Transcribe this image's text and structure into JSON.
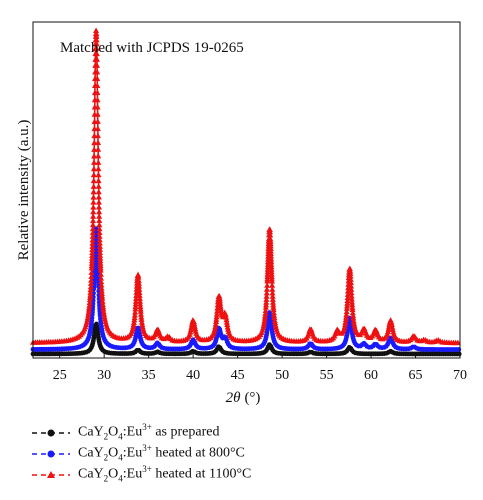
{
  "chart_data": {
    "type": "line",
    "annotation": "Matched with JCPDS 19-0265",
    "xlabel_var": "2θ",
    "xlabel_unit": "(°)",
    "ylabel": "Relative intensity (a.u.)",
    "xlim": [
      22,
      70
    ],
    "ylim": [
      0,
      1
    ],
    "xticks": [
      25,
      30,
      35,
      40,
      45,
      50,
      55,
      60,
      65,
      70
    ],
    "grid": false,
    "legend_position": "bottom",
    "series": [
      {
        "name_prefix": "CaY",
        "name_suffix": " as prepared",
        "color": "#111111",
        "marker": "circle",
        "baseline": 0.012,
        "peaks": [
          [
            29.1,
            0.09
          ],
          [
            33.8,
            0.012
          ],
          [
            36.0,
            0.006
          ],
          [
            40.0,
            0.008
          ],
          [
            42.9,
            0.022
          ],
          [
            48.6,
            0.028
          ],
          [
            53.2,
            0.006
          ],
          [
            57.6,
            0.02
          ],
          [
            62.2,
            0.008
          ]
        ]
      },
      {
        "name_prefix": "CaY",
        "name_suffix": " heated at 800°C",
        "color": "#1a1aff",
        "marker": "circle",
        "baseline": 0.025,
        "peaks": [
          [
            29.1,
            0.36
          ],
          [
            33.8,
            0.065
          ],
          [
            36.0,
            0.018
          ],
          [
            40.0,
            0.028
          ],
          [
            42.9,
            0.06
          ],
          [
            43.6,
            0.03
          ],
          [
            48.6,
            0.11
          ],
          [
            53.2,
            0.018
          ],
          [
            57.6,
            0.095
          ],
          [
            59.2,
            0.015
          ],
          [
            60.5,
            0.015
          ],
          [
            62.2,
            0.035
          ],
          [
            64.8,
            0.008
          ]
        ]
      },
      {
        "name_prefix": "CaY",
        "name_suffix": " heated at 1100°C",
        "color": "#ee1111",
        "marker": "triangle",
        "baseline": 0.045,
        "peaks": [
          [
            29.1,
            0.93
          ],
          [
            33.8,
            0.2
          ],
          [
            36.0,
            0.035
          ],
          [
            37.2,
            0.015
          ],
          [
            40.0,
            0.065
          ],
          [
            42.9,
            0.13
          ],
          [
            43.6,
            0.07
          ],
          [
            48.6,
            0.34
          ],
          [
            53.2,
            0.04
          ],
          [
            56.2,
            0.03
          ],
          [
            57.6,
            0.22
          ],
          [
            59.2,
            0.035
          ],
          [
            60.5,
            0.035
          ],
          [
            62.2,
            0.065
          ],
          [
            64.8,
            0.02
          ],
          [
            66.0,
            0.008
          ],
          [
            67.5,
            0.008
          ]
        ]
      }
    ]
  }
}
